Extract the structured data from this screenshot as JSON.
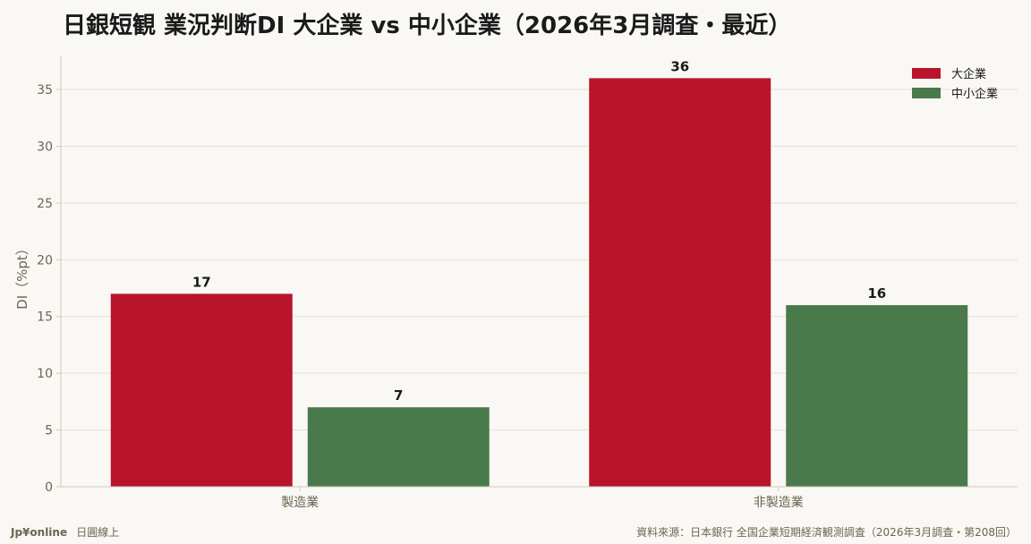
{
  "footer": {
    "brand": "Jp¥online",
    "brand_sub": "日圓線上",
    "source": "資料來源：日本銀行 全国企業短期経済観測調査（2026年3月調査・第208回）"
  },
  "colors": {
    "background": "#faf8f4",
    "large_enterprise": "#b8142c",
    "sme": "#4a7a4c"
  },
  "chart_data": {
    "type": "bar",
    "title": "日銀短観 業況判断DI 大企業 vs 中小企業（2026年3月調査・最近）",
    "xlabel": "",
    "ylabel": "DI（%pt）",
    "categories": [
      "製造業",
      "非製造業"
    ],
    "series": [
      {
        "name": "大企業",
        "values": [
          17,
          36
        ],
        "color": "#b8142c"
      },
      {
        "name": "中小企業",
        "values": [
          7,
          16
        ],
        "color": "#4a7a4c"
      }
    ],
    "ylim": [
      0,
      38
    ],
    "yticks": [
      0,
      5,
      10,
      15,
      20,
      25,
      30,
      35
    ],
    "grid": true,
    "legend_position": "top-right",
    "data_labels": true
  }
}
